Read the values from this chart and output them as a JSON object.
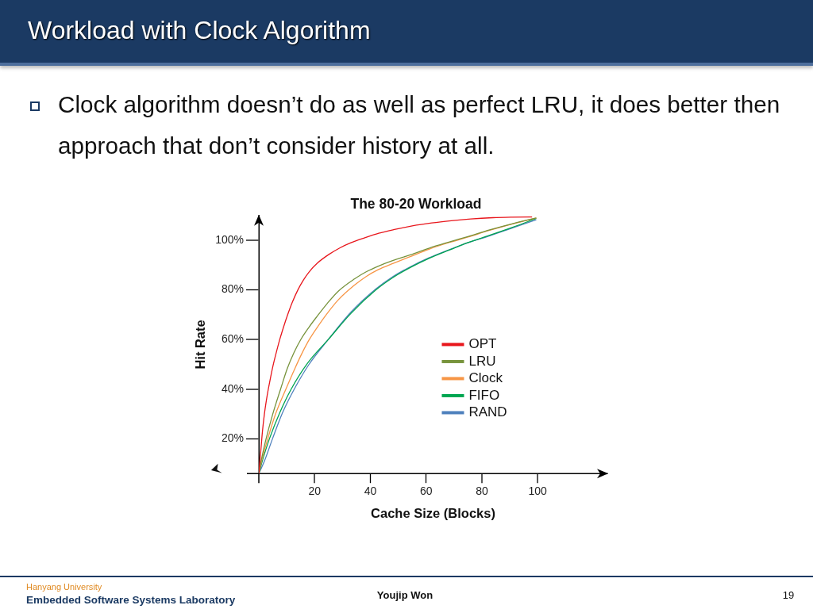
{
  "chart_data": {
    "type": "line",
    "title": "The 80-20 Workload",
    "xlabel": "Cache Size (Blocks)",
    "ylabel": "Hit Rate",
    "xlim": [
      0,
      125
    ],
    "xticks": [
      20,
      40,
      60,
      80,
      100
    ],
    "ylim": [
      6,
      110
    ],
    "yticks": [
      {
        "value": 20,
        "label": "20%"
      },
      {
        "value": 40,
        "label": "40%"
      },
      {
        "value": 60,
        "label": "60%"
      },
      {
        "value": 80,
        "label": "80%"
      },
      {
        "value": 100,
        "label": "100%"
      }
    ],
    "marker": "none",
    "legend": "right",
    "series": [
      {
        "name": "OPT",
        "color": "#e8161c",
        "x": [
          0,
          0.7,
          1.3,
          2,
          3,
          4,
          5,
          6.2,
          7.5,
          9,
          10.5,
          12,
          14,
          16,
          18,
          21,
          25,
          29,
          33,
          38,
          43,
          49,
          55,
          62,
          69,
          76,
          84,
          91,
          98
        ],
        "values": [
          6,
          15,
          23,
          30,
          37.5,
          43.5,
          49,
          54.5,
          60,
          65.5,
          70.5,
          75,
          80,
          84,
          87.2,
          90.8,
          94.2,
          96.9,
          99,
          101,
          102.8,
          104.4,
          105.8,
          107,
          107.9,
          108.6,
          109.1,
          109.3,
          109.4
        ]
      },
      {
        "name": "LRU",
        "color": "#77933c",
        "x": [
          0,
          1,
          2.6,
          5,
          7.8,
          10.2,
          12.5,
          15.2,
          18,
          21,
          24.5,
          28.5,
          34.4,
          38.5,
          42.9,
          48,
          54.3,
          61,
          68.6,
          75,
          82.8,
          91,
          99.5
        ],
        "values": [
          6,
          12,
          20,
          30,
          40,
          48.3,
          54.5,
          60.3,
          65,
          69.5,
          74.5,
          79.5,
          84.5,
          87.3,
          89.6,
          91.8,
          94.1,
          96.8,
          99.4,
          101.5,
          104.2,
          106.7,
          109
        ]
      },
      {
        "name": "Clock",
        "color": "#f79646",
        "x": [
          0,
          1.2,
          3.2,
          6,
          9.7,
          13,
          15.5,
          18.1,
          21,
          24.5,
          28.5,
          34.4,
          38.5,
          42.9,
          48,
          54.3,
          61,
          68.6,
          75,
          82.8,
          91,
          99.5
        ],
        "values": [
          6,
          12,
          20,
          30,
          40,
          48.5,
          54.5,
          60,
          65,
          70.5,
          76,
          82,
          85.4,
          88.2,
          90.6,
          93.4,
          96.4,
          99.2,
          101.3,
          104,
          106.6,
          109
        ]
      },
      {
        "name": "FIFO",
        "color": "#00a550",
        "x": [
          0,
          1.5,
          3.8,
          7.5,
          11.6,
          17.5,
          24.9,
          33,
          42,
          48,
          54.3,
          61,
          68.6,
          75,
          82.8,
          91,
          99.5
        ],
        "values": [
          6,
          12,
          20,
          30.5,
          40,
          50.5,
          60,
          70.5,
          80,
          84.9,
          89,
          92.7,
          96.2,
          99.1,
          102,
          105.2,
          108.8
        ]
      },
      {
        "name": "RAND",
        "color": "#4f81bd",
        "x": [
          0,
          2,
          4.9,
          8.5,
          12.7,
          18,
          24.9,
          33,
          42,
          48,
          54.3,
          61,
          68.6,
          75,
          82.8,
          91,
          99.5
        ],
        "values": [
          6,
          11,
          20,
          30.5,
          40,
          50,
          60,
          71,
          80.4,
          85.3,
          89.3,
          92.9,
          96.3,
          99,
          101.8,
          105,
          108.3
        ]
      }
    ],
    "annotations": [
      "Workload with Clock Algorithm",
      "Clock algorithm doesn’t do as well as perfect LRU, it does better then approach that don’t consider history at all.",
      "Hanyang University",
      "Embedded Software Systems Laboratory",
      "Youjip Won",
      "19"
    ]
  }
}
